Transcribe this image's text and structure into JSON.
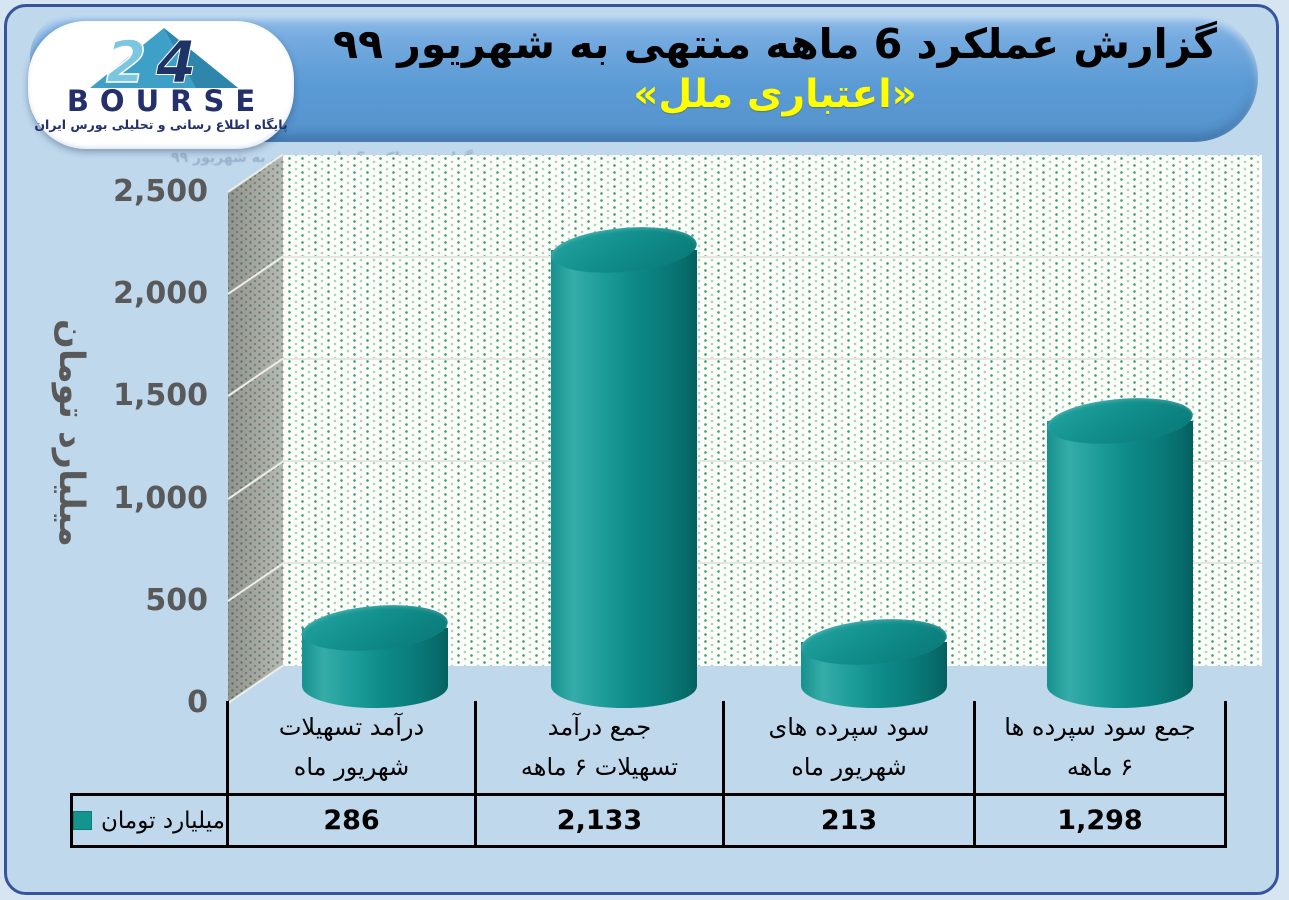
{
  "header": {
    "title": "گزارش عملکرد 6 ماهه منتهی به شهریور ۹۹",
    "subtitle": "«اعتباری ملل»",
    "logo": {
      "brand": "BOURSE",
      "number_2": "2",
      "number_4": "4",
      "tagline": "پایگاه اطلاع رسانی و تحلیلی بورس ایران"
    }
  },
  "colors": {
    "page_bg": "#BFD8EC",
    "outer_bg": "#D7E5F3",
    "frame_border": "#35549B",
    "header_band": "#5B9BD5",
    "title_text": "#000000",
    "subtitle_text": "#FFFF00",
    "logo_navy": "#23306B",
    "logo_teal": "#3E9FC7",
    "cylinder_teal": "#0E8E8C",
    "axis_text": "#595959",
    "pattern_dot_green": "#2E9669",
    "side_wall_gray": "#AFB0A9",
    "grid_line": "#E6E6E0",
    "table_border": "#000000"
  },
  "chart_data": {
    "type": "bar",
    "style": "3d-cylinder",
    "title": "گزارش عملکرد 6 ماهه منتهی به شهریور ۹۹ «اعتباری ملل»",
    "categories": [
      "درآمد تسهیلات شهریور ماه",
      "جمع درآمد تسهیلات ۶ ماهه",
      "سود سپرده های شهریور ماه",
      "جمع سود سپرده ها ۶ ماهه"
    ],
    "category_lines": [
      [
        "درآمد تسهیلات",
        "شهریور ماه"
      ],
      [
        "جمع درآمد",
        "تسهیلات ۶ ماهه"
      ],
      [
        "سود سپرده های",
        "شهریور ماه"
      ],
      [
        "جمع سود سپرده ها",
        "۶ ماهه"
      ]
    ],
    "series": [
      {
        "name": "میلیارد تومان",
        "values": [
          286,
          2133,
          213,
          1298
        ]
      }
    ],
    "value_labels": [
      "286",
      "2,133",
      "213",
      "1,298"
    ],
    "xlabel": "",
    "ylabel": "میلیارد تومان",
    "ylim": [
      0,
      2500
    ],
    "ytick_interval": 500,
    "yticks": [
      {
        "label": "0",
        "value": 0
      },
      {
        "label": "500",
        "value": 500
      },
      {
        "label": "1,000",
        "value": 1000
      },
      {
        "label": "1,500",
        "value": 1500
      },
      {
        "label": "2,000",
        "value": 2000
      },
      {
        "label": "2,500",
        "value": 2500
      }
    ],
    "grid": true,
    "legend_position": "bottom-left",
    "legend_label": "میلیارد تومان"
  }
}
